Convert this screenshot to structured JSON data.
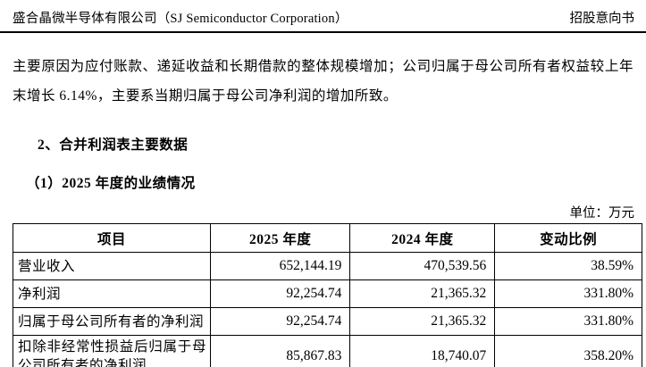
{
  "page_header": {
    "left": "盛合晶微半导体有限公司（SJ Semiconductor Corporation）",
    "right": "招股意向书"
  },
  "paragraph": "主要原因为应付账款、递延收益和长期借款的整体规模增加；公司归属于母公司所有者权益较上年末增长 6.14%，主要系当期归属于母公司净利润的增加所致。",
  "section_heading": "2、合并利润表主要数据",
  "sub_heading": "（1）2025 年度的业绩情况",
  "unit_label": "单位：万元",
  "table": {
    "headers": [
      "项目",
      "2025 年度",
      "2024 年度",
      "变动比例"
    ],
    "rows": [
      {
        "item": "营业收入",
        "y2025": "652,144.19",
        "y2024": "470,539.56",
        "change": "38.59%"
      },
      {
        "item": "净利润",
        "y2025": "92,254.74",
        "y2024": "21,365.32",
        "change": "331.80%"
      },
      {
        "item": "归属于母公司所有者的净利润",
        "y2025": "92,254.74",
        "y2024": "21,365.32",
        "change": "331.80%"
      },
      {
        "item": "扣除非经常性损益后归属于母公司所有者的净利润",
        "y2025": "85,867.83",
        "y2024": "18,740.07",
        "change": "358.20%"
      }
    ]
  },
  "colors": {
    "text": "#000000",
    "background": "#ffffff",
    "border": "#000000"
  }
}
